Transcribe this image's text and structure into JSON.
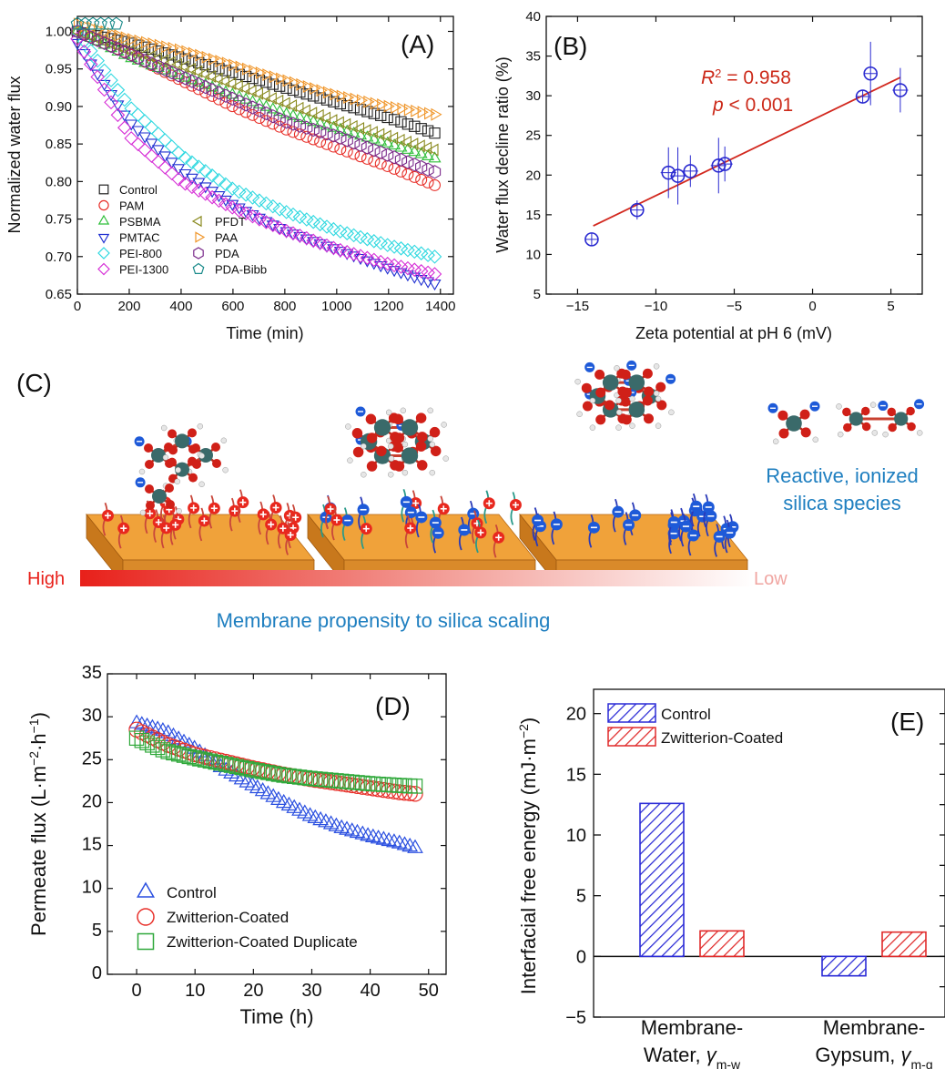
{
  "chart_data": [
    {
      "panel": "(A)",
      "type": "scatter",
      "xlabel": "Time (min)",
      "ylabel": "Normalized water flux",
      "xlim": [
        0,
        1450
      ],
      "ylim": [
        0.65,
        1.02
      ],
      "xticks": [
        0,
        200,
        400,
        600,
        800,
        1000,
        1200,
        1400
      ],
      "yticks": [
        0.65,
        0.7,
        0.75,
        0.8,
        0.85,
        0.9,
        0.95,
        1.0
      ],
      "legend": "bottom-left",
      "series": [
        {
          "name": "Control",
          "color": "#222222",
          "marker": "square",
          "x": [
            0,
            200,
            400,
            600,
            800,
            1000,
            1200,
            1400
          ],
          "y": [
            1.0,
            0.985,
            0.965,
            0.945,
            0.925,
            0.905,
            0.885,
            0.862
          ]
        },
        {
          "name": "PAM",
          "color": "#e8302a",
          "marker": "circle",
          "x": [
            0,
            200,
            400,
            600,
            800,
            1000,
            1200,
            1400
          ],
          "y": [
            1.0,
            0.97,
            0.935,
            0.9,
            0.87,
            0.845,
            0.82,
            0.792
          ]
        },
        {
          "name": "PSBMA",
          "color": "#2fbf3a",
          "marker": "triangle-up",
          "x": [
            0,
            200,
            400,
            600,
            800,
            1000,
            1200,
            1400
          ],
          "y": [
            1.0,
            0.965,
            0.94,
            0.915,
            0.89,
            0.87,
            0.85,
            0.828
          ]
        },
        {
          "name": "PMTAC",
          "color": "#1f2fd1",
          "marker": "triangle-down",
          "x": [
            0,
            200,
            400,
            600,
            800,
            1000,
            1200,
            1400
          ],
          "y": [
            0.985,
            0.88,
            0.815,
            0.77,
            0.735,
            0.71,
            0.685,
            0.662
          ]
        },
        {
          "name": "PEI-800",
          "color": "#2fd8e0",
          "marker": "diamond",
          "x": [
            0,
            200,
            400,
            600,
            800,
            1000,
            1200,
            1400
          ],
          "y": [
            1.0,
            0.9,
            0.835,
            0.79,
            0.76,
            0.735,
            0.715,
            0.698
          ]
        },
        {
          "name": "PEI-1300",
          "color": "#d62fd6",
          "marker": "diamond",
          "x": [
            0,
            200,
            400,
            600,
            800,
            1000,
            1200,
            1400
          ],
          "y": [
            0.99,
            0.86,
            0.8,
            0.765,
            0.735,
            0.71,
            0.69,
            0.675
          ]
        },
        {
          "name": "PFDT",
          "color": "#8a8a1f",
          "marker": "triangle-left",
          "x": [
            0,
            200,
            400,
            600,
            800,
            1000,
            1200,
            1400
          ],
          "y": [
            1.0,
            0.975,
            0.955,
            0.93,
            0.905,
            0.88,
            0.86,
            0.84
          ]
        },
        {
          "name": "PAA",
          "color": "#f0962a",
          "marker": "triangle-right",
          "x": [
            0,
            200,
            400,
            600,
            800,
            1000,
            1200,
            1400
          ],
          "y": [
            1.01,
            0.99,
            0.975,
            0.955,
            0.935,
            0.915,
            0.9,
            0.888
          ]
        },
        {
          "name": "PDA",
          "color": "#7a2a8a",
          "marker": "hexagon",
          "x": [
            0,
            200,
            400,
            600,
            800,
            1000,
            1200,
            1400
          ],
          "y": [
            1.0,
            0.97,
            0.94,
            0.91,
            0.88,
            0.86,
            0.835,
            0.81
          ]
        },
        {
          "name": "PDA-Bibb",
          "color": "#1a8a8a",
          "marker": "pentagon",
          "x": [
            0,
            150
          ],
          "y": [
            1.01,
            1.01
          ]
        }
      ]
    },
    {
      "panel": "(B)",
      "type": "scatter",
      "xlabel": "Zeta potential at pH 6 (mV)",
      "ylabel": "Water flux decline ratio (%)",
      "xlim": [
        -17,
        7
      ],
      "ylim": [
        5,
        40
      ],
      "xticks": [
        -15,
        -10,
        -5,
        0,
        5
      ],
      "yticks": [
        5,
        10,
        15,
        20,
        25,
        30,
        35,
        40
      ],
      "annotation_r2_label": "R",
      "annotation_r2_value": " = 0.958",
      "annotation_p_label": "p",
      "annotation_p_value": " < 0.001",
      "points": [
        {
          "x": -14.1,
          "y": 11.9,
          "yerr": 0.8,
          "xerr": 0.4
        },
        {
          "x": -11.2,
          "y": 15.6,
          "yerr": 1.2,
          "xerr": 0.4
        },
        {
          "x": -9.2,
          "y": 20.3,
          "yerr": 3.2,
          "xerr": 0.5
        },
        {
          "x": -8.6,
          "y": 19.9,
          "yerr": 3.6,
          "xerr": 0.5
        },
        {
          "x": -7.8,
          "y": 20.5,
          "yerr": 2.0,
          "xerr": 0.5
        },
        {
          "x": -6.0,
          "y": 21.2,
          "yerr": 3.5,
          "xerr": 0.5
        },
        {
          "x": -5.6,
          "y": 21.4,
          "yerr": 2.2,
          "xerr": 0.5
        },
        {
          "x": 3.2,
          "y": 29.9,
          "yerr": 0.8,
          "xerr": 0.4
        },
        {
          "x": 3.7,
          "y": 32.8,
          "yerr": 4.0,
          "xerr": 0.4
        },
        {
          "x": 5.6,
          "y": 30.7,
          "yerr": 2.8,
          "xerr": 0.5
        }
      ],
      "fit_line": {
        "x": [
          -14,
          5.6
        ],
        "y": [
          13.6,
          32.3
        ]
      }
    },
    {
      "panel": "(D)",
      "type": "scatter",
      "xlabel": "Time (h)",
      "ylabel_main": "Permeate flux (L·m",
      "ylabel_sup1": "−2",
      "ylabel_mid": "·h",
      "ylabel_sup2": "−1",
      "ylabel_end": ")",
      "xlim": [
        -5,
        53
      ],
      "ylim": [
        0,
        35
      ],
      "xticks": [
        0,
        10,
        20,
        30,
        40,
        50
      ],
      "yticks": [
        0,
        5,
        10,
        15,
        20,
        25,
        30,
        35
      ],
      "legend": "bottom-left",
      "series": [
        {
          "name": "Control",
          "color": "#2a4fe0",
          "marker": "triangle",
          "x": [
            0,
            5,
            10,
            15,
            20,
            25,
            30,
            35,
            40,
            45,
            48
          ],
          "y": [
            29.2,
            28.2,
            26.2,
            23.8,
            21.9,
            20.0,
            18.3,
            17.0,
            16.0,
            15.2,
            14.6
          ]
        },
        {
          "name": "Zwitterion-Coated",
          "color": "#e8302a",
          "marker": "circle-dot",
          "x": [
            0,
            5,
            10,
            15,
            20,
            25,
            30,
            35,
            40,
            45,
            48
          ],
          "y": [
            28.5,
            26.8,
            25.6,
            24.8,
            24.0,
            23.3,
            22.7,
            22.2,
            21.7,
            21.2,
            21.0
          ]
        },
        {
          "name": "Zwitterion-Coated Duplicate",
          "color": "#2fa83a",
          "marker": "square-dot",
          "x": [
            0,
            5,
            10,
            15,
            20,
            25,
            30,
            35,
            40,
            45,
            48
          ],
          "y": [
            27.5,
            26.0,
            25.2,
            24.5,
            23.8,
            23.2,
            22.8,
            22.5,
            22.2,
            22.0,
            21.9
          ]
        }
      ]
    },
    {
      "panel": "(E)",
      "type": "bar",
      "ylabel_main": "Interfacial free energy (mJ·m",
      "ylabel_sup": "−2",
      "ylabel_end": ")",
      "ylim": [
        -5,
        22
      ],
      "yticks": [
        -5,
        0,
        5,
        10,
        15,
        20
      ],
      "categories": [
        {
          "line1": "Membrane-",
          "line2": "Water, ",
          "gamma": "γ",
          "sub": "m-w"
        },
        {
          "line1": "Membrane-",
          "line2": "Gypsum, ",
          "gamma": "γ",
          "sub": "m-g"
        }
      ],
      "legend": "top-left",
      "series": [
        {
          "name": "Control",
          "color": "#2a2ad6",
          "values": [
            12.6,
            -1.6
          ]
        },
        {
          "name": "Zwitterion-Coated",
          "color": "#e02a2a",
          "values": [
            2.1,
            2.0
          ]
        }
      ]
    }
  ],
  "panel_c": {
    "label": "(C)",
    "species_line1": "Reactive, ionized",
    "species_line2": "silica species",
    "gradient_high": "High",
    "gradient_low": "Low",
    "caption": "Membrane propensity to silica scaling"
  },
  "colors": {
    "slab_top": "#f0a23a",
    "slab_side": "#c8781c",
    "positive": "#e8281e",
    "negative": "#1e5ad8",
    "silicon": "#3a6a6a",
    "oxygen": "#d02018"
  }
}
